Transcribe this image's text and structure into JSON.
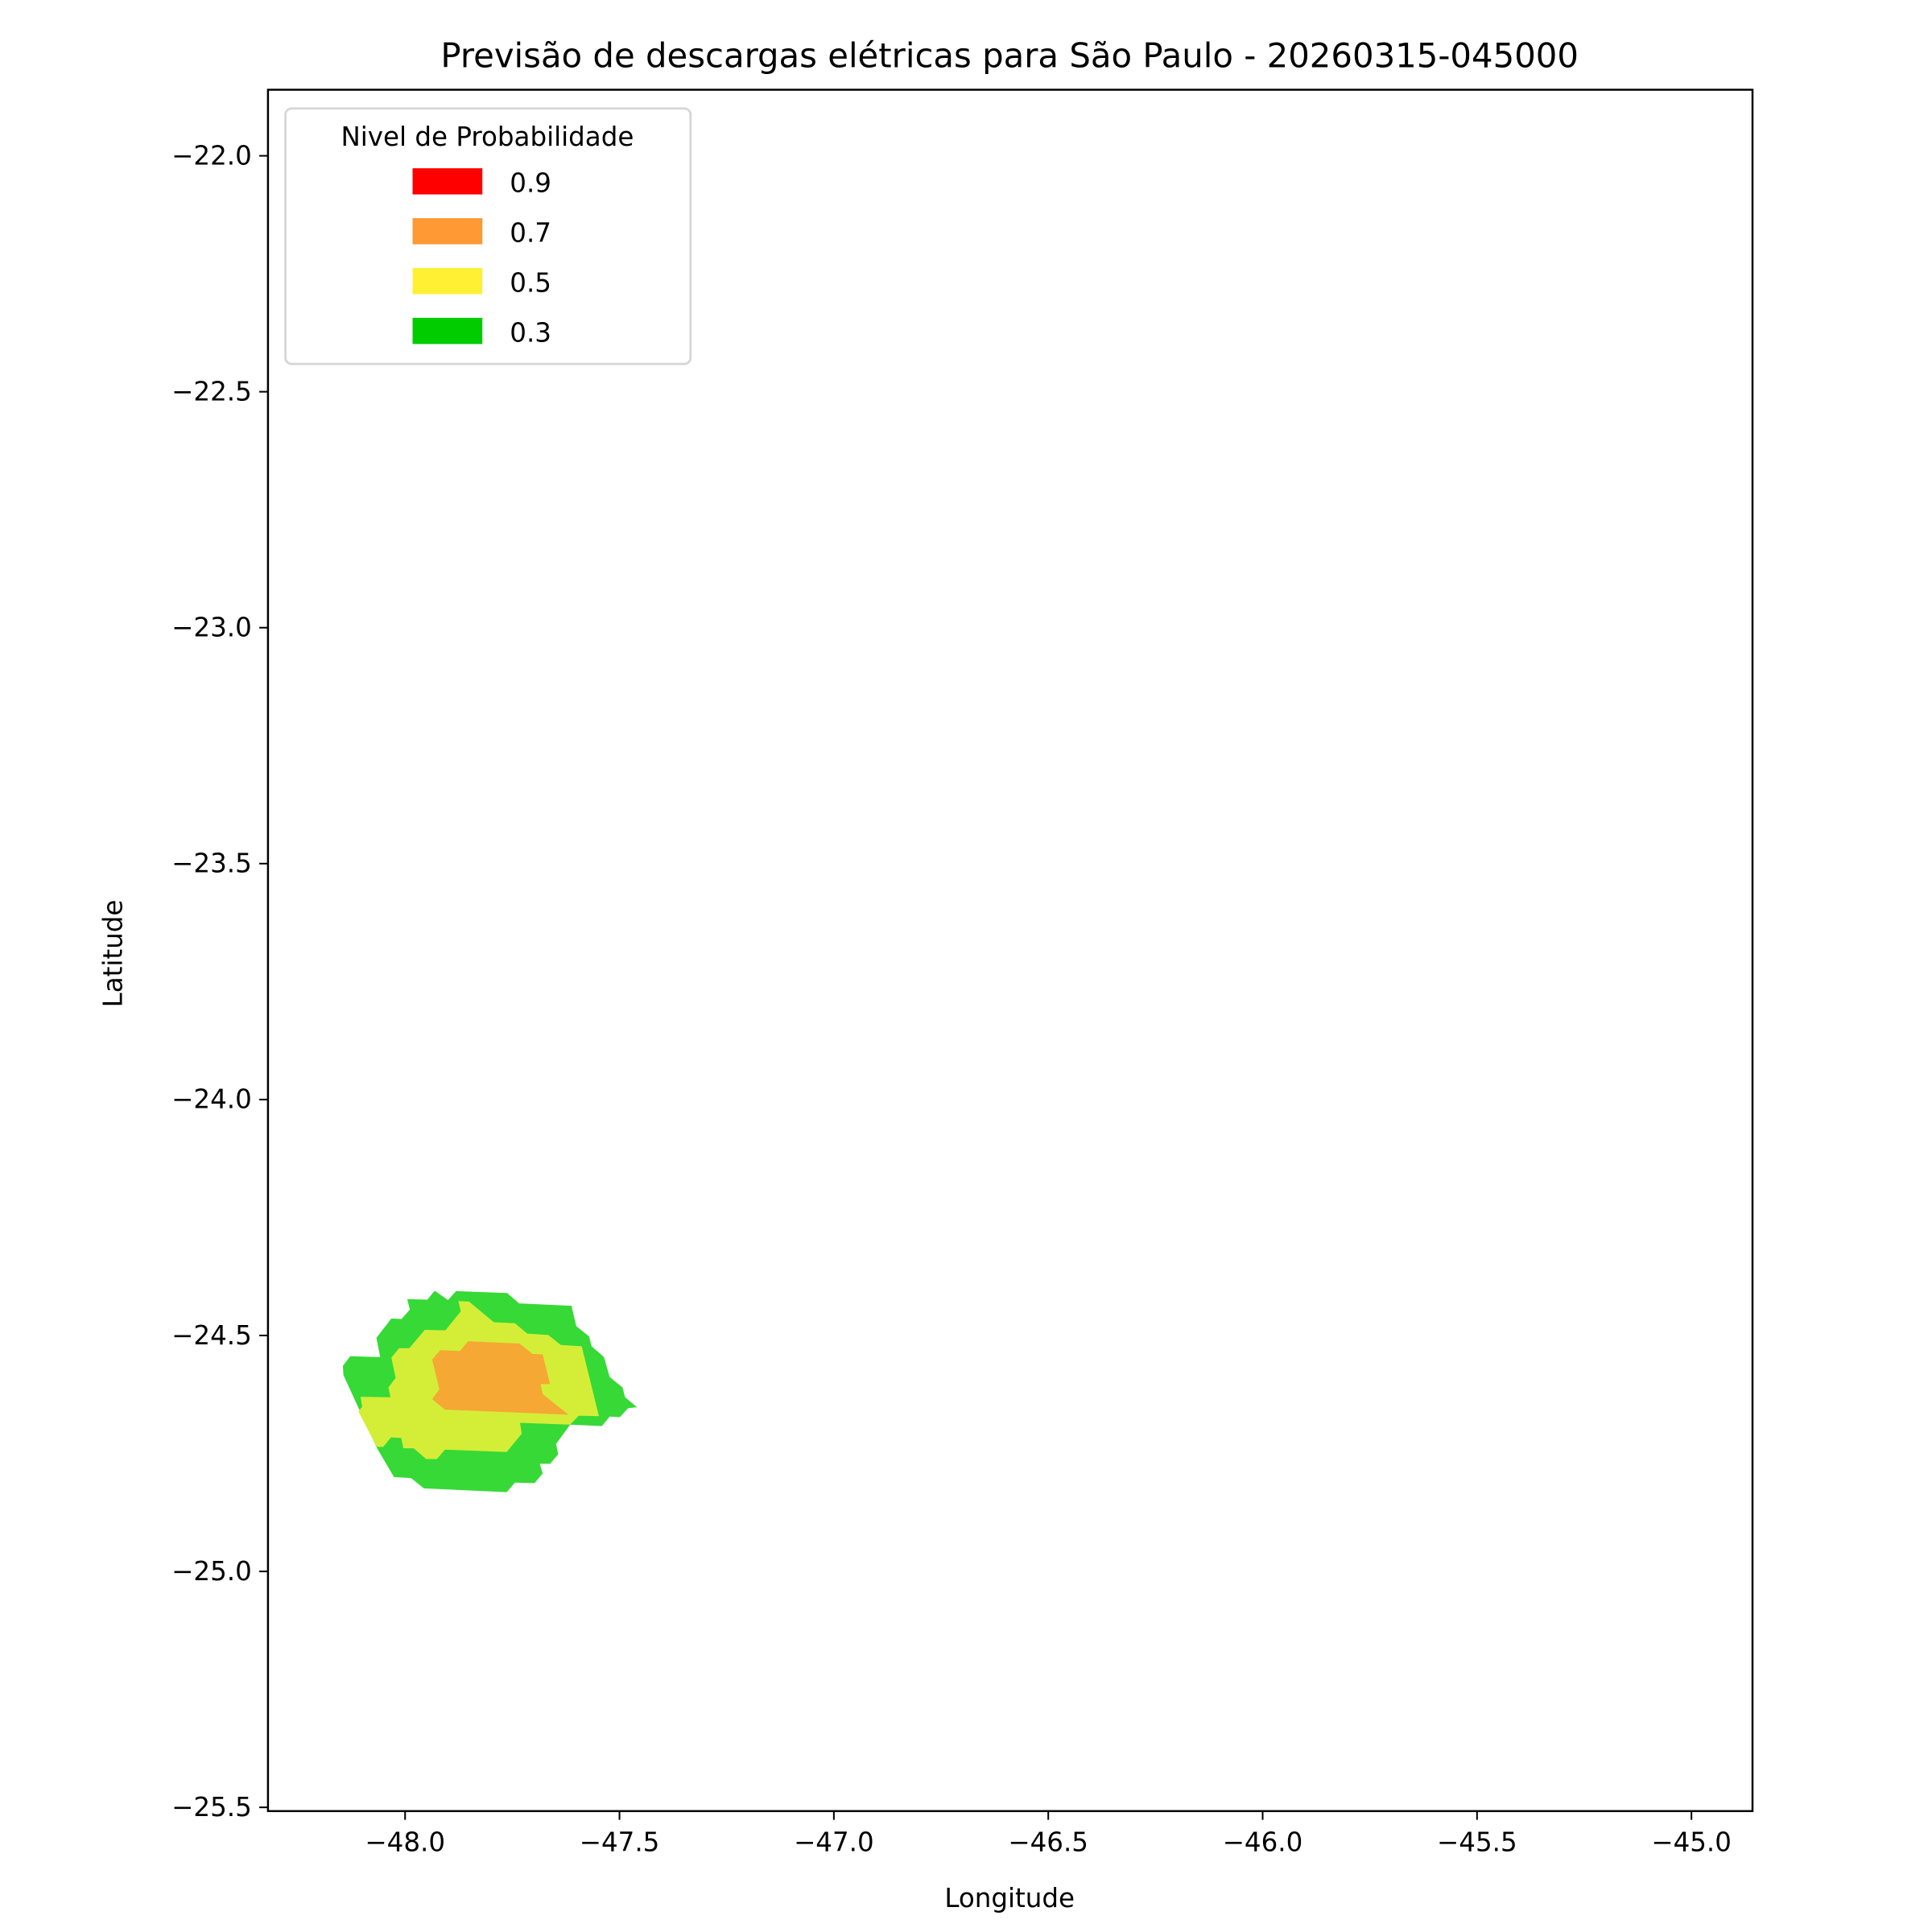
{
  "chart_data": {
    "type": "filled-contour",
    "title": "Previsão de descargas elétricas para São Paulo - 20260315-045000",
    "xlabel": "Longitude",
    "ylabel": "Latitude",
    "xlim": [
      -48.32,
      -44.87
    ],
    "ylim": [
      -25.52,
      -21.86
    ],
    "xticks": [
      -48.0,
      -47.5,
      -47.0,
      -46.5,
      -46.0,
      -45.5,
      -45.0
    ],
    "xtick_labels": [
      "−48.0",
      "−47.5",
      "−47.0",
      "−46.5",
      "−46.0",
      "−45.5",
      "−45.0"
    ],
    "yticks": [
      -22.0,
      -22.5,
      -23.0,
      -23.5,
      -24.0,
      -24.5,
      -25.0,
      -25.5
    ],
    "ytick_labels": [
      "−22.0",
      "−22.5",
      "−23.0",
      "−23.5",
      "−24.0",
      "−24.5",
      "−25.0",
      "−25.5"
    ],
    "grid": false,
    "legend": {
      "title": "Nivel de Probabilidade",
      "placement": "upper-left",
      "entries": [
        {
          "label": "0.9",
          "color": "#ff0000"
        },
        {
          "label": "0.7",
          "color": "#ff9933"
        },
        {
          "label": "0.5",
          "color": "#fff033"
        },
        {
          "label": "0.3",
          "color": "#00cc00"
        }
      ]
    },
    "regions": [
      {
        "level": 0.3,
        "color": "#36d936",
        "polygon": [
          [
            -47.931,
            -24.405
          ],
          [
            -47.9,
            -24.425
          ],
          [
            -47.881,
            -24.406
          ],
          [
            -47.762,
            -24.41
          ],
          [
            -47.734,
            -24.432
          ],
          [
            -47.612,
            -24.437
          ],
          [
            -47.601,
            -24.48
          ],
          [
            -47.571,
            -24.502
          ],
          [
            -47.565,
            -24.523
          ],
          [
            -47.536,
            -24.546
          ],
          [
            -47.523,
            -24.588
          ],
          [
            -47.493,
            -24.61
          ],
          [
            -47.487,
            -24.631
          ],
          [
            -47.459,
            -24.652
          ],
          [
            -47.48,
            -24.654
          ],
          [
            -47.499,
            -24.673
          ],
          [
            -47.523,
            -24.672
          ],
          [
            -47.541,
            -24.692
          ],
          [
            -47.615,
            -24.689
          ],
          [
            -47.648,
            -24.73
          ],
          [
            -47.643,
            -24.752
          ],
          [
            -47.662,
            -24.772
          ],
          [
            -47.686,
            -24.772
          ],
          [
            -47.679,
            -24.792
          ],
          [
            -47.698,
            -24.813
          ],
          [
            -47.744,
            -24.812
          ],
          [
            -47.763,
            -24.832
          ],
          [
            -47.956,
            -24.824
          ],
          [
            -47.986,
            -24.802
          ],
          [
            -48.026,
            -24.8
          ],
          [
            -48.066,
            -24.738
          ],
          [
            -48.144,
            -24.584
          ],
          [
            -48.145,
            -24.564
          ],
          [
            -48.128,
            -24.544
          ],
          [
            -48.058,
            -24.546
          ],
          [
            -48.067,
            -24.505
          ],
          [
            -48.032,
            -24.464
          ],
          [
            -48.008,
            -24.465
          ],
          [
            -47.989,
            -24.445
          ],
          [
            -47.995,
            -24.423
          ],
          [
            -47.948,
            -24.424
          ]
        ]
      },
      {
        "level": 0.5,
        "color": "#d4ee38",
        "polygon": [
          [
            -47.876,
            -24.427
          ],
          [
            -47.851,
            -24.428
          ],
          [
            -47.793,
            -24.472
          ],
          [
            -47.744,
            -24.474
          ],
          [
            -47.715,
            -24.496
          ],
          [
            -47.666,
            -24.499
          ],
          [
            -47.637,
            -24.52
          ],
          [
            -47.588,
            -24.523
          ],
          [
            -47.548,
            -24.671
          ],
          [
            -47.595,
            -24.67
          ],
          [
            -47.615,
            -24.689
          ],
          [
            -47.732,
            -24.685
          ],
          [
            -47.728,
            -24.708
          ],
          [
            -47.763,
            -24.747
          ],
          [
            -47.907,
            -24.742
          ],
          [
            -47.926,
            -24.762
          ],
          [
            -47.951,
            -24.762
          ],
          [
            -47.98,
            -24.739
          ],
          [
            -48.004,
            -24.739
          ],
          [
            -48.009,
            -24.717
          ],
          [
            -48.033,
            -24.716
          ],
          [
            -48.051,
            -24.736
          ],
          [
            -48.066,
            -24.736
          ],
          [
            -48.109,
            -24.661
          ],
          [
            -48.1,
            -24.651
          ],
          [
            -48.104,
            -24.63
          ],
          [
            -48.034,
            -24.631
          ],
          [
            -48.039,
            -24.61
          ],
          [
            -48.022,
            -24.59
          ],
          [
            -48.032,
            -24.547
          ],
          [
            -48.014,
            -24.527
          ],
          [
            -47.99,
            -24.527
          ],
          [
            -47.954,
            -24.488
          ],
          [
            -47.906,
            -24.489
          ],
          [
            -47.87,
            -24.449
          ]
        ]
      },
      {
        "level": 0.7,
        "color": "#f5a833",
        "polygon": [
          [
            -47.853,
            -24.512
          ],
          [
            -47.733,
            -24.517
          ],
          [
            -47.703,
            -24.539
          ],
          [
            -47.679,
            -24.54
          ],
          [
            -47.662,
            -24.603
          ],
          [
            -47.684,
            -24.603
          ],
          [
            -47.679,
            -24.624
          ],
          [
            -47.619,
            -24.668
          ],
          [
            -47.907,
            -24.657
          ],
          [
            -47.937,
            -24.635
          ],
          [
            -47.92,
            -24.614
          ],
          [
            -47.937,
            -24.551
          ],
          [
            -47.918,
            -24.531
          ],
          [
            -47.872,
            -24.533
          ]
        ]
      }
    ]
  }
}
